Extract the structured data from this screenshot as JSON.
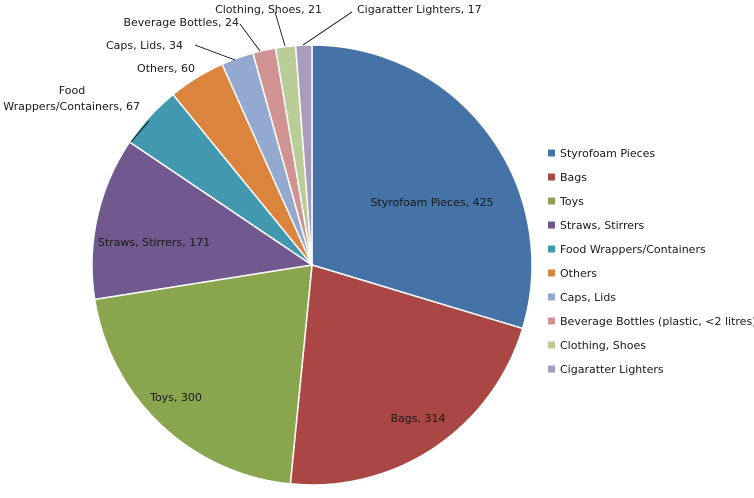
{
  "chart_data": {
    "type": "pie",
    "title": "",
    "legend_position": "right",
    "slices": [
      {
        "name": "Styrofoam Pieces",
        "value": 425,
        "color": "#4572A7",
        "label": "Styrofoam Pieces, 425",
        "legend": "Styrofoam Pieces"
      },
      {
        "name": "Bags",
        "value": 314,
        "color": "#AA4643",
        "label": "Bags, 314",
        "legend": "Bags"
      },
      {
        "name": "Toys",
        "value": 300,
        "color": "#89A54E",
        "label": "Toys, 300",
        "legend": "Toys"
      },
      {
        "name": "Straws, Stirrers",
        "value": 171,
        "color": "#71588F",
        "label": "Straws, Stirrers, 171",
        "legend": "Straws, Stirrers"
      },
      {
        "name": "Food Wrappers/Containers",
        "value": 67,
        "color": "#4198AF",
        "label": "Food Wrappers/Containers, 67",
        "label_lines": [
          "Food",
          "Wrappers/Containers, 67"
        ],
        "legend": "Food Wrappers/Containers"
      },
      {
        "name": "Others",
        "value": 60,
        "color": "#DB843D",
        "label": "Others, 60",
        "legend": "Others"
      },
      {
        "name": "Caps, Lids",
        "value": 34,
        "color": "#93A9CF",
        "label": "Caps, Lids, 34",
        "legend": "Caps, Lids"
      },
      {
        "name": "Beverage Bottles (plastic, <2 litres)",
        "value": 24,
        "color": "#D19392",
        "label": "Beverage Bottles, 24",
        "legend": "Beverage Bottles (plastic, <2 litres)"
      },
      {
        "name": "Clothing, Shoes",
        "value": 21,
        "color": "#B9CD96",
        "label": "Clothing, Shoes, 21",
        "legend": "Clothing, Shoes"
      },
      {
        "name": "Cigaratter Lighters",
        "value": 17,
        "color": "#A99BBD",
        "label": "Cigaratter Lighters, 17",
        "legend": "Cigaratter Lighters"
      }
    ]
  }
}
